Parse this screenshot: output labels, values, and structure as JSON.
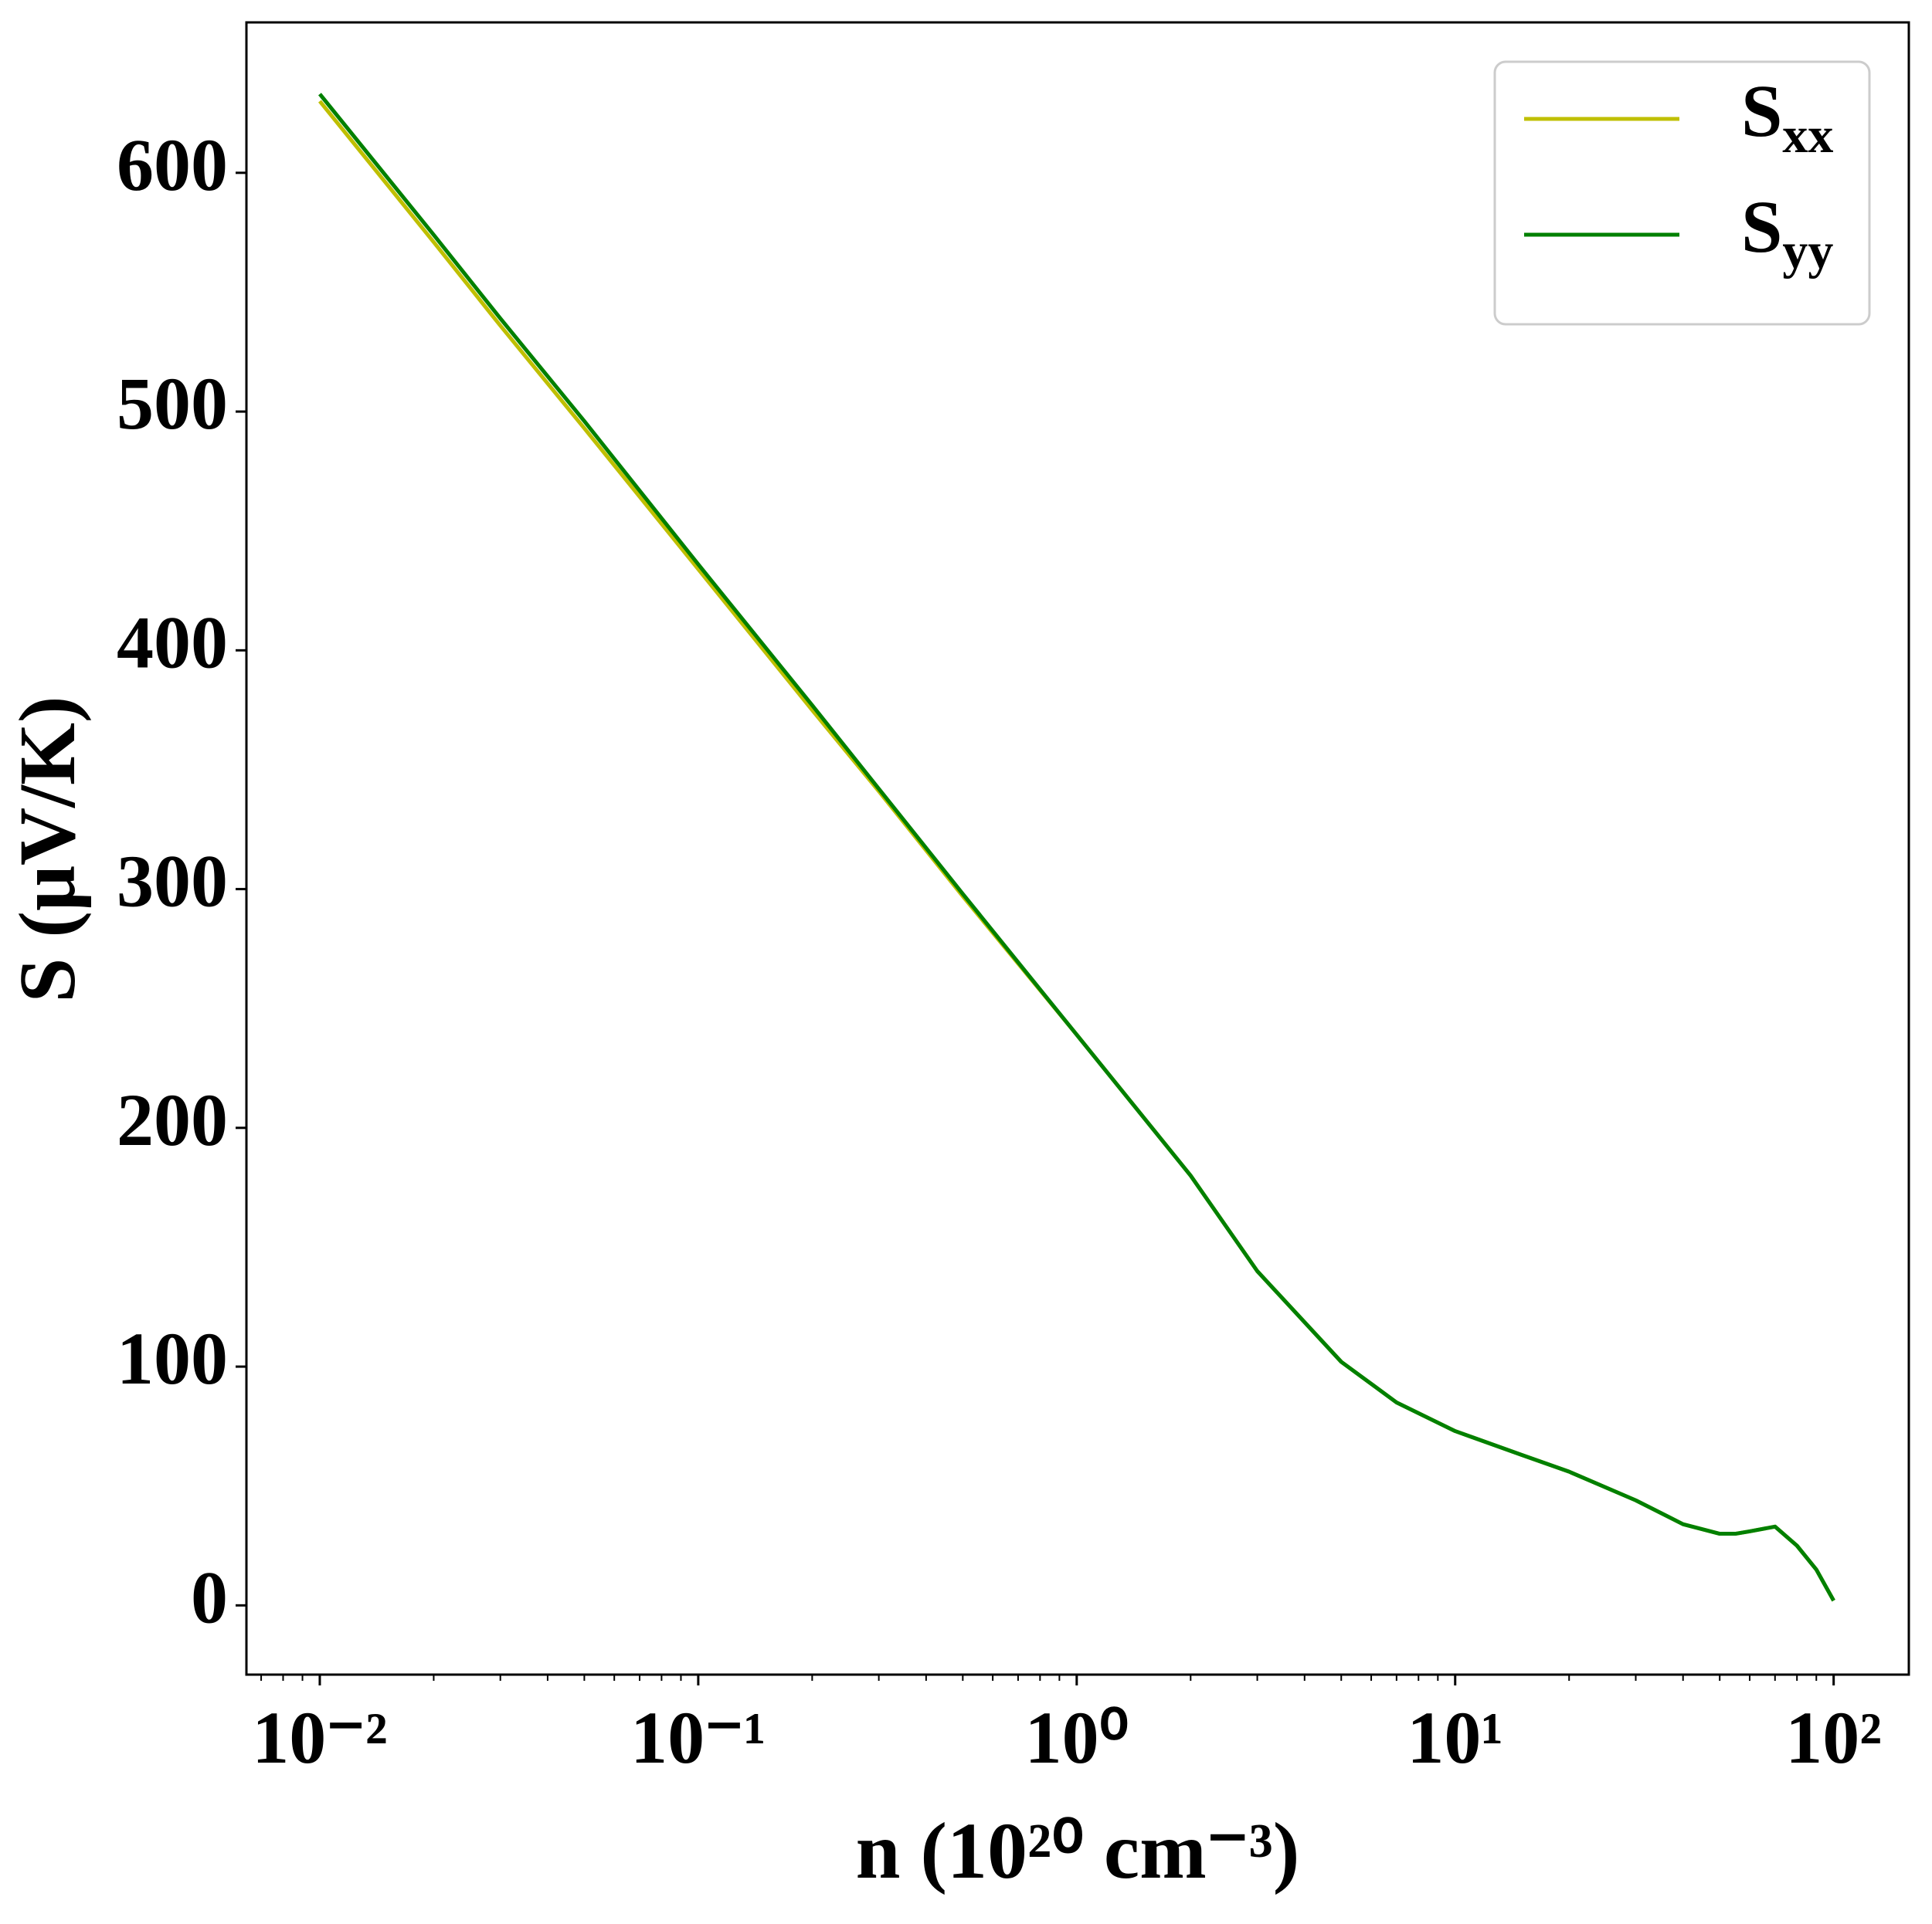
{
  "chart_data": {
    "type": "line",
    "xlabel": "n (10²⁰ cm⁻³)",
    "ylabel": "S (μV/K)",
    "xscale": "log",
    "x": [
      0.01,
      0.02,
      0.03,
      0.05,
      0.1,
      0.2,
      0.3,
      0.5,
      1,
      2,
      3,
      5,
      7,
      10,
      15,
      20,
      30,
      40,
      50,
      55,
      60,
      70,
      80,
      90,
      100
    ],
    "series": [
      {
        "name": "Sxx",
        "color": "#bfbf00",
        "values": [
          630,
          571,
          536,
          493,
          434,
          375,
          341,
          297,
          239,
          180,
          140,
          102,
          85,
          73,
          63,
          56,
          44,
          34,
          30,
          30,
          31,
          33,
          25,
          15,
          2
        ]
      },
      {
        "name": "Syy",
        "color": "#008000",
        "values": [
          633,
          574,
          539,
          496,
          436,
          377,
          342,
          298,
          239,
          180,
          140,
          102,
          85,
          73,
          63,
          56,
          44,
          34,
          30,
          30,
          31,
          33,
          25,
          15,
          2
        ]
      }
    ],
    "xlim": [
      0.0064,
      158
    ],
    "ylim": [
      -29,
      663
    ],
    "xticks": [
      {
        "value": 0.01,
        "label": "10⁻²"
      },
      {
        "value": 0.1,
        "label": "10⁻¹"
      },
      {
        "value": 1,
        "label": "10⁰"
      },
      {
        "value": 10,
        "label": "10¹"
      },
      {
        "value": 100,
        "label": "10²"
      }
    ],
    "xminorticks": [
      0.007,
      0.008,
      0.009,
      0.02,
      0.03,
      0.04,
      0.05,
      0.06,
      0.07,
      0.08,
      0.09,
      0.2,
      0.3,
      0.4,
      0.5,
      0.6,
      0.7,
      0.8,
      0.9,
      2,
      3,
      4,
      5,
      6,
      7,
      8,
      9,
      20,
      30,
      40,
      50,
      60,
      70,
      80,
      90
    ],
    "yticks": [
      0,
      100,
      200,
      300,
      400,
      500,
      600
    ],
    "grid": false,
    "legend": "upper right"
  }
}
